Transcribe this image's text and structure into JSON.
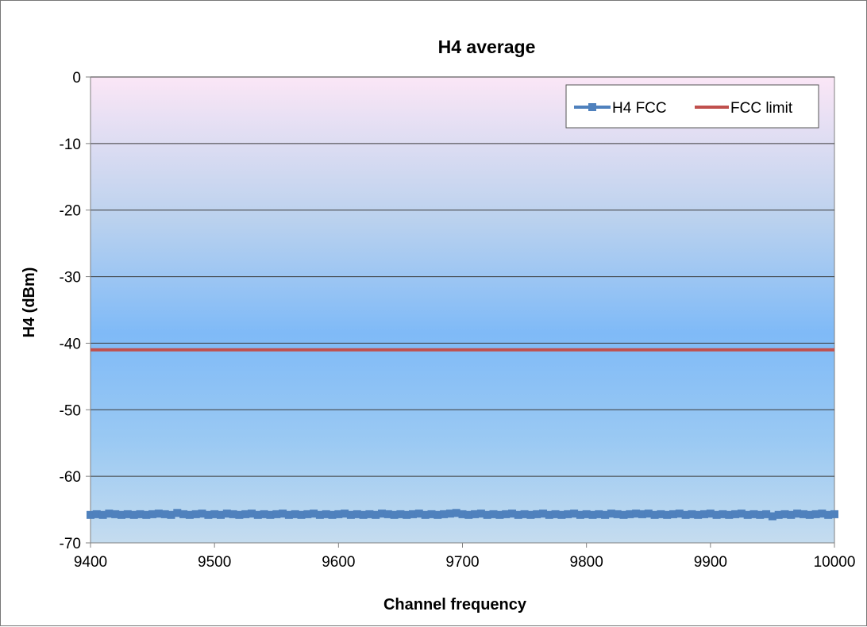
{
  "chart_data": {
    "type": "line",
    "title": "H4 average",
    "xlabel": "Channel frequency",
    "ylabel": "H4 (dBm)",
    "xlim": [
      9400,
      10000
    ],
    "ylim": [
      -70,
      0
    ],
    "x_ticks": [
      9400,
      9500,
      9600,
      9700,
      9800,
      9900,
      10000
    ],
    "y_ticks": [
      0,
      -10,
      -20,
      -30,
      -40,
      -50,
      -60,
      -70
    ],
    "grid": true,
    "legend": "top-right",
    "series": [
      {
        "name": "H4 FCC",
        "color": "#4F81BD",
        "marker": "square",
        "x": [
          9400,
          9405,
          9410,
          9415,
          9420,
          9425,
          9430,
          9435,
          9440,
          9445,
          9450,
          9455,
          9460,
          9465,
          9470,
          9475,
          9480,
          9485,
          9490,
          9495,
          9500,
          9505,
          9510,
          9515,
          9520,
          9525,
          9530,
          9535,
          9540,
          9545,
          9550,
          9555,
          9560,
          9565,
          9570,
          9575,
          9580,
          9585,
          9590,
          9595,
          9600,
          9605,
          9610,
          9615,
          9620,
          9625,
          9630,
          9635,
          9640,
          9645,
          9650,
          9655,
          9660,
          9665,
          9670,
          9675,
          9680,
          9685,
          9690,
          9695,
          9700,
          9705,
          9710,
          9715,
          9720,
          9725,
          9730,
          9735,
          9740,
          9745,
          9750,
          9755,
          9760,
          9765,
          9770,
          9775,
          9780,
          9785,
          9790,
          9795,
          9800,
          9805,
          9810,
          9815,
          9820,
          9825,
          9830,
          9835,
          9840,
          9845,
          9850,
          9855,
          9860,
          9865,
          9870,
          9875,
          9880,
          9885,
          9890,
          9895,
          9900,
          9905,
          9910,
          9915,
          9920,
          9925,
          9930,
          9935,
          9940,
          9945,
          9950,
          9955,
          9960,
          9965,
          9970,
          9975,
          9980,
          9985,
          9990,
          9995,
          10000
        ],
        "values": [
          -65.8,
          -65.7,
          -65.8,
          -65.6,
          -65.7,
          -65.8,
          -65.7,
          -65.8,
          -65.7,
          -65.8,
          -65.7,
          -65.6,
          -65.7,
          -65.8,
          -65.5,
          -65.7,
          -65.8,
          -65.7,
          -65.6,
          -65.8,
          -65.7,
          -65.8,
          -65.6,
          -65.7,
          -65.8,
          -65.7,
          -65.6,
          -65.8,
          -65.7,
          -65.8,
          -65.7,
          -65.6,
          -65.8,
          -65.7,
          -65.8,
          -65.7,
          -65.6,
          -65.8,
          -65.7,
          -65.8,
          -65.7,
          -65.6,
          -65.8,
          -65.7,
          -65.8,
          -65.7,
          -65.8,
          -65.6,
          -65.7,
          -65.8,
          -65.7,
          -65.8,
          -65.7,
          -65.6,
          -65.8,
          -65.7,
          -65.8,
          -65.7,
          -65.6,
          -65.5,
          -65.7,
          -65.8,
          -65.7,
          -65.6,
          -65.8,
          -65.7,
          -65.8,
          -65.7,
          -65.6,
          -65.8,
          -65.7,
          -65.8,
          -65.7,
          -65.6,
          -65.8,
          -65.7,
          -65.8,
          -65.7,
          -65.6,
          -65.8,
          -65.7,
          -65.8,
          -65.7,
          -65.8,
          -65.6,
          -65.7,
          -65.8,
          -65.7,
          -65.6,
          -65.7,
          -65.6,
          -65.8,
          -65.7,
          -65.8,
          -65.7,
          -65.6,
          -65.8,
          -65.7,
          -65.8,
          -65.7,
          -65.6,
          -65.8,
          -65.7,
          -65.8,
          -65.7,
          -65.6,
          -65.8,
          -65.7,
          -65.8,
          -65.7,
          -66.0,
          -65.8,
          -65.7,
          -65.8,
          -65.6,
          -65.7,
          -65.8,
          -65.7,
          -65.6,
          -65.8,
          -65.7
        ]
      },
      {
        "name": "FCC limit",
        "color": "#C0504D",
        "marker": "none",
        "x": [
          9400,
          10000
        ],
        "values": [
          -41,
          -41
        ]
      }
    ]
  }
}
